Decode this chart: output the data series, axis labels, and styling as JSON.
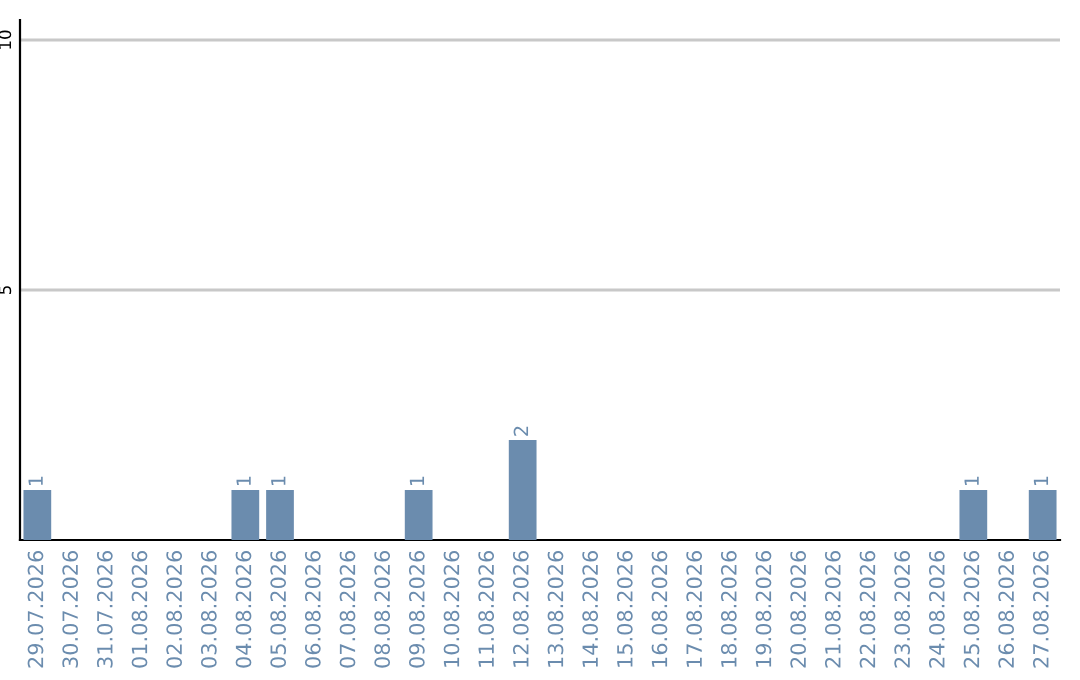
{
  "chart_data": {
    "type": "bar",
    "categories": [
      "29.07.2026",
      "30.07.2026",
      "31.07.2026",
      "01.08.2026",
      "02.08.2026",
      "03.08.2026",
      "04.08.2026",
      "05.08.2026",
      "06.08.2026",
      "07.08.2026",
      "08.08.2026",
      "09.08.2026",
      "10.08.2026",
      "11.08.2026",
      "12.08.2026",
      "13.08.2026",
      "14.08.2026",
      "15.08.2026",
      "16.08.2026",
      "17.08.2026",
      "18.08.2026",
      "19.08.2026",
      "20.08.2026",
      "21.08.2026",
      "22.08.2026",
      "23.08.2026",
      "24.08.2026",
      "25.08.2026",
      "26.08.2026",
      "27.08.2026"
    ],
    "values": [
      1,
      0,
      0,
      0,
      0,
      0,
      1,
      1,
      0,
      0,
      0,
      1,
      0,
      0,
      2,
      0,
      0,
      0,
      0,
      0,
      0,
      0,
      0,
      0,
      0,
      0,
      0,
      1,
      0,
      1
    ],
    "value_labels": [
      "1",
      null,
      null,
      null,
      null,
      null,
      "1",
      "1",
      null,
      null,
      null,
      "1",
      null,
      null,
      "2",
      null,
      null,
      null,
      null,
      null,
      null,
      null,
      null,
      null,
      null,
      null,
      null,
      "1",
      null,
      "1"
    ],
    "color": "#6b8cae",
    "ylim": [
      0,
      10.4
    ],
    "yticks": [
      5,
      10
    ],
    "grid": "y",
    "legend": false
  }
}
